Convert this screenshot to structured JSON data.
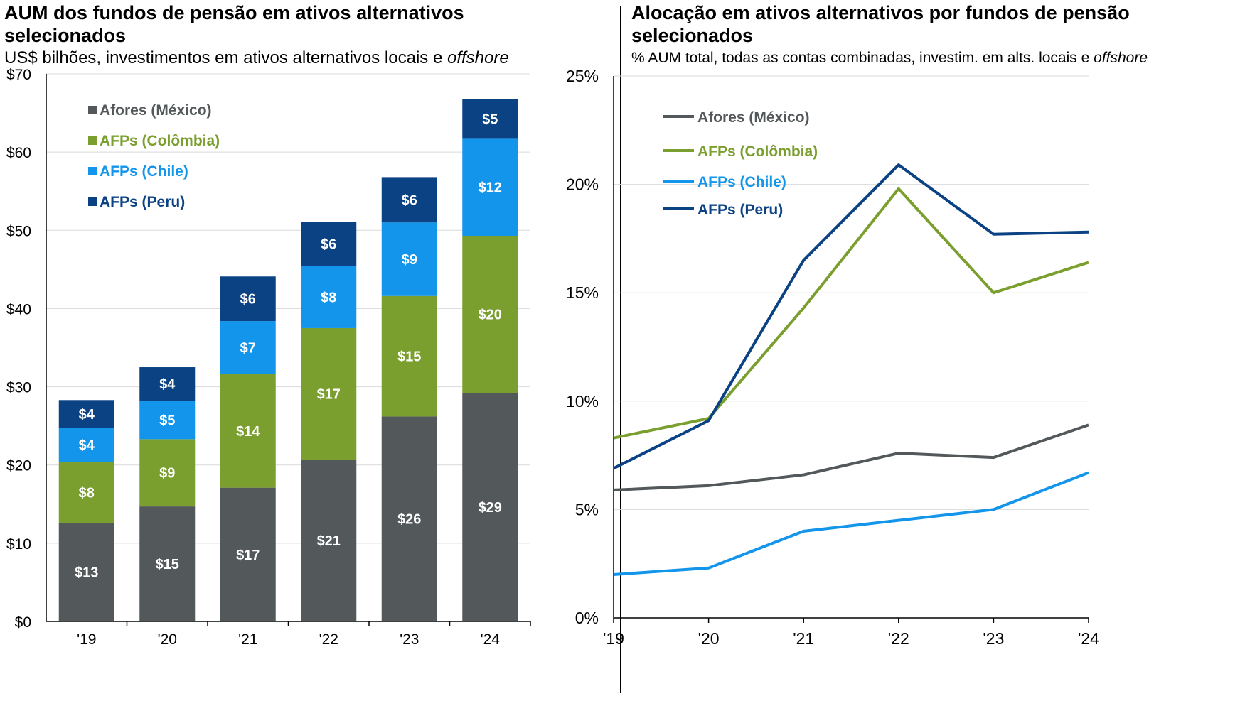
{
  "left_panel": {
    "title": "AUM dos fundos de pensão em ativos alternativos selecionados",
    "subtitle_main": "US$ bilhões, investimentos em ativos alternativos locais e ",
    "subtitle_italic": "offshore"
  },
  "right_panel": {
    "title": "Alocação em ativos alternativos por fundos de pensão selecionados",
    "subtitle_main": "% AUM total, todas as contas combinadas, investim. em alts. locais e ",
    "subtitle_italic": "offshore"
  },
  "colors": {
    "mexico": "#53585b",
    "colombia": "#7b9f2f",
    "chile": "#1495ec",
    "peru": "#0a4283",
    "grid": "#d9d9d9",
    "axis": "#000000"
  },
  "chart_data": [
    {
      "type": "bar",
      "stacked": true,
      "title": "AUM dos fundos de pensão em ativos alternativos selecionados",
      "ylabel": "US$ bilhões",
      "categories": [
        "'19",
        "'20",
        "'21",
        "'22",
        "'23",
        "'24"
      ],
      "ylim": [
        0,
        70
      ],
      "yticks": [
        0,
        10,
        20,
        30,
        40,
        50,
        60,
        70
      ],
      "ytick_labels": [
        "$0",
        "$10",
        "$20",
        "$30",
        "$40",
        "$50",
        "$60",
        "$70"
      ],
      "grid": true,
      "legend_position": "top-left",
      "series": [
        {
          "name": "Afores (México)",
          "color_key": "mexico",
          "values": [
            12.6,
            14.7,
            17.1,
            20.7,
            26.2,
            29.2
          ],
          "labels": [
            "$13",
            "$15",
            "$17",
            "$21",
            "$26",
            "$29"
          ]
        },
        {
          "name": "AFPs (Colômbia)",
          "color_key": "colombia",
          "values": [
            7.8,
            8.6,
            14.5,
            16.8,
            15.4,
            20.1
          ],
          "labels": [
            "$8",
            "$9",
            "$14",
            "$17",
            "$15",
            "$20"
          ]
        },
        {
          "name": "AFPs (Chile)",
          "color_key": "chile",
          "values": [
            4.3,
            4.9,
            6.8,
            7.9,
            9.4,
            12.4
          ],
          "labels": [
            "$4",
            "$5",
            "$7",
            "$8",
            "$9",
            "$12"
          ]
        },
        {
          "name": "AFPs (Peru)",
          "color_key": "peru",
          "values": [
            3.6,
            4.3,
            5.7,
            5.7,
            5.8,
            5.1
          ],
          "labels": [
            "$4",
            "$4",
            "$6",
            "$6",
            "$6",
            "$5"
          ]
        }
      ]
    },
    {
      "type": "line",
      "title": "Alocação em ativos alternativos por fundos de pensão selecionados",
      "ylabel": "% AUM total",
      "x": [
        "'19",
        "'20",
        "'21",
        "'22",
        "'23",
        "'24"
      ],
      "ylim": [
        0,
        25
      ],
      "yticks": [
        0,
        5,
        10,
        15,
        20,
        25
      ],
      "ytick_labels": [
        "0%",
        "5%",
        "10%",
        "15%",
        "20%",
        "25%"
      ],
      "grid": true,
      "legend_position": "top-left",
      "series": [
        {
          "name": "Afores (México)",
          "color_key": "mexico",
          "values": [
            5.9,
            6.1,
            6.6,
            7.6,
            7.4,
            8.9
          ]
        },
        {
          "name": "AFPs (Colômbia)",
          "color_key": "colombia",
          "values": [
            8.3,
            9.2,
            14.3,
            19.8,
            15.0,
            16.4
          ]
        },
        {
          "name": "AFPs (Chile)",
          "color_key": "chile",
          "values": [
            2.0,
            2.3,
            4.0,
            4.5,
            5.0,
            6.7
          ]
        },
        {
          "name": "AFPs (Peru)",
          "color_key": "peru",
          "values": [
            6.9,
            9.1,
            16.5,
            20.9,
            17.7,
            17.8
          ]
        }
      ]
    }
  ]
}
